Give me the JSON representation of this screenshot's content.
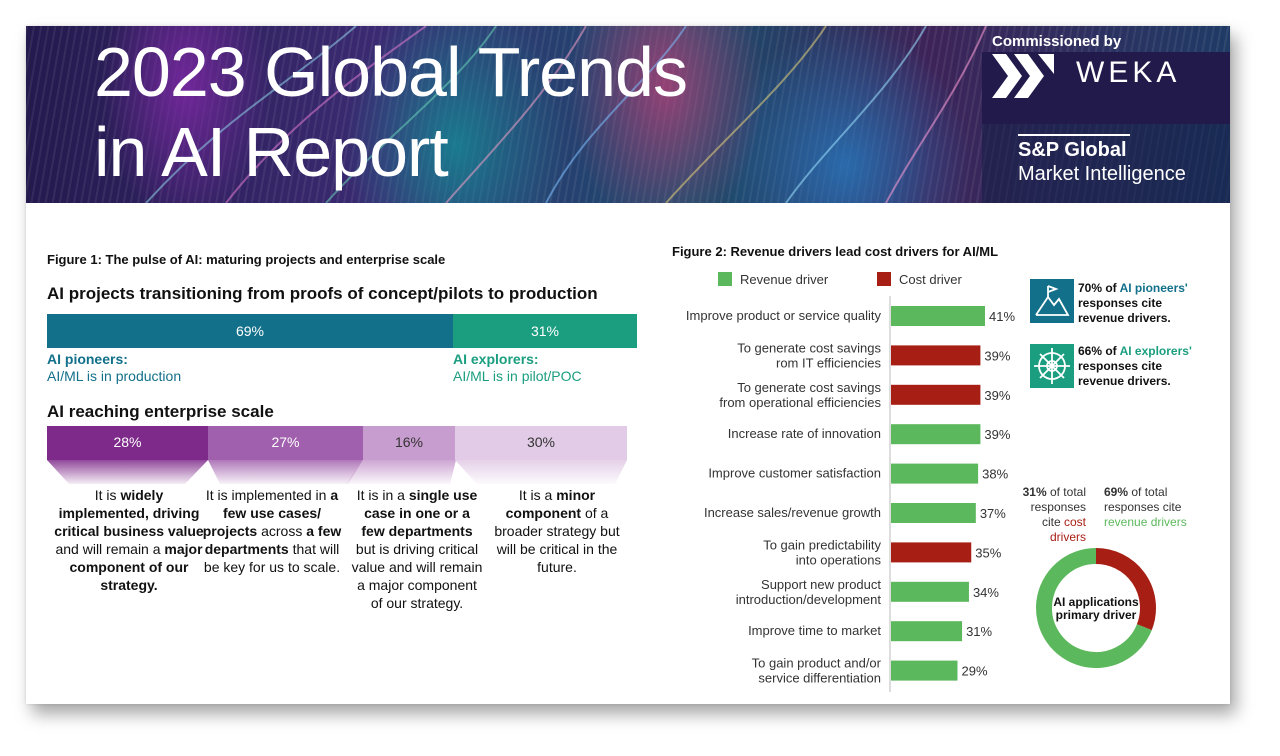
{
  "header": {
    "title_line1": "2023 Global Trends",
    "title_line2": "in AI Report",
    "commissioned_by": "Commissioned by",
    "weka": "WEKA",
    "spg_name": "S&P Global",
    "spg_sub": "Market Intelligence"
  },
  "figure1": {
    "title": "Figure 1: The pulse of AI: maturing projects and enterprise scale",
    "transition_heading": "AI projects transitioning from proofs of concept/pilots to production",
    "pioneers": {
      "value": "69%",
      "name": "AI pioneers:",
      "desc": "AI/ML is in production"
    },
    "explorers": {
      "value": "31%",
      "name": "AI explorers:",
      "desc": "AI/ML is in pilot/POC"
    },
    "scale_heading": "AI reaching enterprise scale",
    "scale": [
      {
        "value": "28%"
      },
      {
        "value": "27%"
      },
      {
        "value": "16%"
      },
      {
        "value": "30%"
      }
    ]
  },
  "figure2": {
    "title": "Figure 2: Revenue drivers lead cost drivers for AI/ML",
    "legend_revenue": "Revenue driver",
    "legend_cost": "Cost driver",
    "callout1_pct": "70% of",
    "callout1_group": "AI pioneers'",
    "callout1_rest": "responses cite revenue drivers.",
    "callout2_pct": "66% of",
    "callout2_group": "AI explorers'",
    "callout2_rest": "responses cite revenue drivers.",
    "note_cost_a": "31%",
    "note_cost_b": "of total responses cite",
    "note_cost_c": "cost drivers",
    "note_rev_a": "69%",
    "note_rev_b": "of total responses cite",
    "note_rev_c": "revenue drivers",
    "donut_caption": "AI applications primary driver"
  },
  "colors": {
    "revenue": "#5cb85c",
    "cost": "#a71e14",
    "pioneers": "#12708a",
    "explorers": "#1b9e80"
  },
  "chart_data": [
    {
      "type": "bar",
      "title": "Figure 2: Revenue drivers lead cost drivers for AI/ML",
      "orientation": "horizontal",
      "xlim": [
        0,
        41
      ],
      "categories": [
        [
          "Improve product or service quality"
        ],
        [
          "To generate cost savings",
          "rom IT efficiencies"
        ],
        [
          "To generate cost savings",
          "from operational efficiencies"
        ],
        [
          "Increase rate of innovation"
        ],
        [
          "Improve customer satisfaction"
        ],
        [
          "Increase sales/revenue growth"
        ],
        [
          "To gain predictability",
          "into operations"
        ],
        [
          "Support new product",
          "introduction/development"
        ],
        [
          "Improve time to market"
        ],
        [
          "To gain product and/or",
          "service differentiation"
        ]
      ],
      "values": [
        41,
        39,
        39,
        39,
        38,
        37,
        35,
        34,
        31,
        29
      ],
      "driver": [
        "revenue",
        "cost",
        "cost",
        "revenue",
        "revenue",
        "revenue",
        "cost",
        "revenue",
        "revenue",
        "revenue"
      ],
      "value_labels": [
        "41%",
        "39%",
        "39%",
        "39%",
        "38%",
        "37%",
        "35%",
        "34%",
        "31%",
        "29%"
      ],
      "legend": [
        "Revenue driver",
        "Cost driver"
      ]
    },
    {
      "type": "pie",
      "title": "AI applications primary driver",
      "slices": [
        {
          "name": "cost drivers",
          "value": 31,
          "color": "#a71e14"
        },
        {
          "name": "revenue drivers",
          "value": 69,
          "color": "#5cb85c"
        }
      ]
    }
  ]
}
